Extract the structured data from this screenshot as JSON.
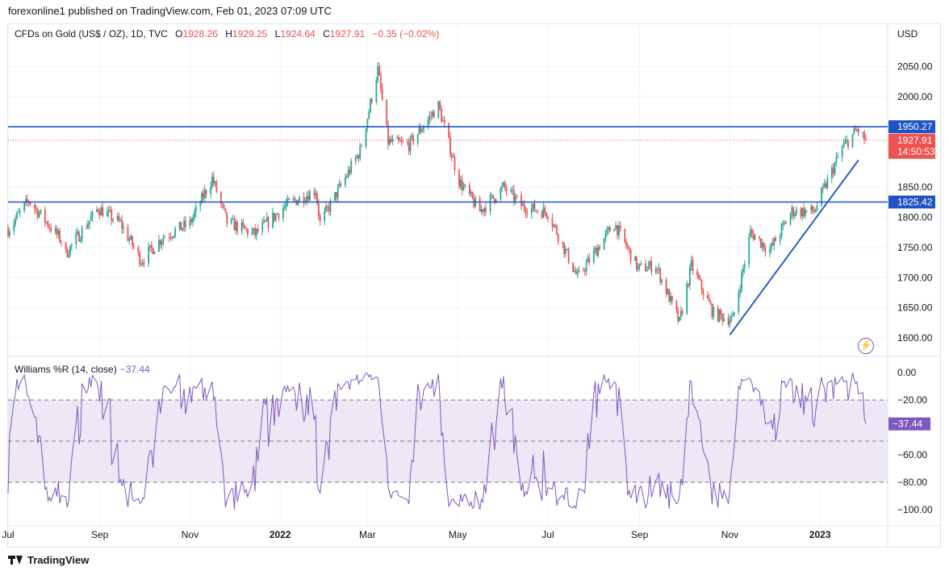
{
  "header": {
    "published": "forexonline1 published on TradingView.com, Feb 01, 2023 07:09 UTC"
  },
  "legend": {
    "symbol": "CFDs on Gold (US$ / OZ), 1D, TVC",
    "open_label": "O",
    "open": "1928.26",
    "high_label": "H",
    "high": "1929.25",
    "low_label": "L",
    "low": "1924.64",
    "close_label": "C",
    "close": "1927.91",
    "change": "−0.35 (−0.02%)"
  },
  "currency": "USD",
  "indicator": {
    "name": "Williams %R (14, close)",
    "value": "−37.44"
  },
  "footer": {
    "brand": "TradingView"
  },
  "icons": [
    "tradingview-logo-icon",
    "lightning-icon"
  ],
  "colors": {
    "up": "#26a69a",
    "down": "#ef5350",
    "hline": "#1e53c4",
    "trend": "#2e5cc7",
    "wr": "#7e57c2",
    "wr_band": "#ede7f6"
  },
  "chart_data": [
    {
      "type": "candlestick",
      "title": "CFDs on Gold (US$ / OZ), 1D, TVC",
      "x_ticks": [
        "Jul",
        "Sep",
        "Nov",
        "2022",
        "Mar",
        "May",
        "Jul",
        "Sep",
        "Nov",
        "2023"
      ],
      "y_ticks": [
        "1600.00",
        "1650.00",
        "1700.00",
        "1750.00",
        "1800.00",
        "1850.00",
        "2000.00",
        "2050.00"
      ],
      "ylim": [
        1575,
        2095
      ],
      "price_key_points": [
        {
          "date": "2021-07-01",
          "price": 1780
        },
        {
          "date": "2021-07-15",
          "price": 1828
        },
        {
          "date": "2021-08-06",
          "price": 1762
        },
        {
          "date": "2021-08-09",
          "price": 1740
        },
        {
          "date": "2021-08-31",
          "price": 1815
        },
        {
          "date": "2021-09-15",
          "price": 1790
        },
        {
          "date": "2021-09-29",
          "price": 1728
        },
        {
          "date": "2021-10-14",
          "price": 1768
        },
        {
          "date": "2021-11-01",
          "price": 1790
        },
        {
          "date": "2021-11-16",
          "price": 1865
        },
        {
          "date": "2021-11-26",
          "price": 1792
        },
        {
          "date": "2021-12-15",
          "price": 1772
        },
        {
          "date": "2022-01-05",
          "price": 1820
        },
        {
          "date": "2022-01-25",
          "price": 1845
        },
        {
          "date": "2022-01-28",
          "price": 1790
        },
        {
          "date": "2022-02-24",
          "price": 1910
        },
        {
          "date": "2022-03-08",
          "price": 2045
        },
        {
          "date": "2022-03-15",
          "price": 1925
        },
        {
          "date": "2022-03-29",
          "price": 1920
        },
        {
          "date": "2022-04-18",
          "price": 1985
        },
        {
          "date": "2022-05-02",
          "price": 1860
        },
        {
          "date": "2022-05-16",
          "price": 1810
        },
        {
          "date": "2022-06-01",
          "price": 1850
        },
        {
          "date": "2022-06-14",
          "price": 1818
        },
        {
          "date": "2022-07-01",
          "price": 1808
        },
        {
          "date": "2022-07-21",
          "price": 1700
        },
        {
          "date": "2022-08-15",
          "price": 1790
        },
        {
          "date": "2022-08-31",
          "price": 1715
        },
        {
          "date": "2022-09-12",
          "price": 1720
        },
        {
          "date": "2022-09-28",
          "price": 1625
        },
        {
          "date": "2022-10-06",
          "price": 1720
        },
        {
          "date": "2022-10-21",
          "price": 1640
        },
        {
          "date": "2022-11-03",
          "price": 1630
        },
        {
          "date": "2022-11-15",
          "price": 1775
        },
        {
          "date": "2022-11-28",
          "price": 1745
        },
        {
          "date": "2022-12-13",
          "price": 1810
        },
        {
          "date": "2022-12-28",
          "price": 1810
        },
        {
          "date": "2023-01-16",
          "price": 1915
        },
        {
          "date": "2023-01-26",
          "price": 1945
        },
        {
          "date": "2023-02-01",
          "price": 1927.91
        }
      ],
      "horizontal_lines": [
        {
          "value": 1950.27,
          "label": "1950.27"
        },
        {
          "value": 1825.42,
          "label": "1825.42"
        }
      ],
      "trendline": [
        {
          "date": "2022-11-01",
          "price": 1605
        },
        {
          "date": "2023-01-27",
          "price": 1895
        }
      ],
      "last_price": {
        "value": 1927.91,
        "label": "1927.91",
        "countdown": "14:50:53"
      }
    },
    {
      "type": "line",
      "title": "Williams %R (14, close)",
      "y_ticks": [
        "0.00",
        "−20.00",
        "−60.00",
        "−80.00",
        "−100.00"
      ],
      "ylim": [
        -100,
        0
      ],
      "levels": [
        -20,
        -50,
        -80
      ],
      "last_value": {
        "value": -37.44,
        "label": "−37.44"
      }
    }
  ]
}
